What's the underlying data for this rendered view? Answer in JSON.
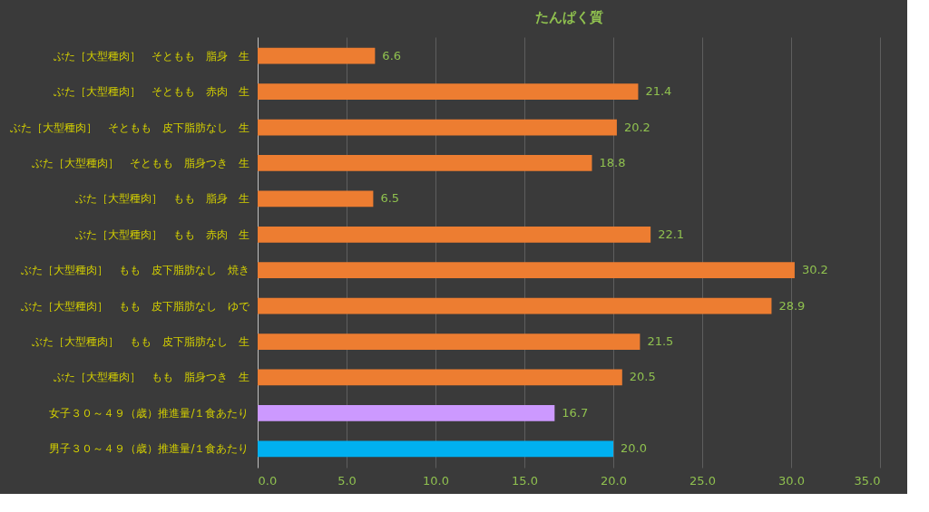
{
  "chart_data": {
    "type": "bar",
    "orientation": "horizontal",
    "title": "たんぱく質",
    "categories": [
      "ぶた［大型種肉］　そともも　脂身　生",
      "ぶた［大型種肉］　そともも　赤肉　生",
      "ぶた［大型種肉］　そともも　皮下脂肪なし　生",
      "ぶた［大型種肉］　そともも　脂身つき　生",
      "ぶた［大型種肉］　もも　脂身　生",
      "ぶた［大型種肉］　もも　赤肉　生",
      "ぶた［大型種肉］　もも　皮下脂肪なし　焼き",
      "ぶた［大型種肉］　もも　皮下脂肪なし　ゆで",
      "ぶた［大型種肉］　もも　皮下脂肪なし　生",
      "ぶた［大型種肉］　もも　脂身つき　生",
      "女子３０～４９（歳）推進量/１食あたり",
      "男子３０～４９（歳）推進量/１食あたり"
    ],
    "values": [
      6.6,
      21.4,
      20.2,
      18.8,
      6.5,
      22.1,
      30.2,
      28.9,
      21.5,
      20.5,
      16.7,
      20.0
    ],
    "value_labels": [
      "6.6",
      "21.4",
      "20.2",
      "18.8",
      "6.5",
      "22.1",
      "30.2",
      "28.9",
      "21.5",
      "20.5",
      "16.7",
      "20.0"
    ],
    "colors": [
      "#ed7d31",
      "#ed7d31",
      "#ed7d31",
      "#ed7d31",
      "#ed7d31",
      "#ed7d31",
      "#ed7d31",
      "#ed7d31",
      "#ed7d31",
      "#ed7d31",
      "#cc99ff",
      "#00b0f0"
    ],
    "xlim": [
      0,
      35
    ],
    "xticks": [
      {
        "value": 0,
        "label": "0.0"
      },
      {
        "value": 5,
        "label": "5.0"
      },
      {
        "value": 10,
        "label": "10.0"
      },
      {
        "value": 15,
        "label": "15.0"
      },
      {
        "value": 20,
        "label": "20.0"
      },
      {
        "value": 25,
        "label": "25.0"
      },
      {
        "value": 30,
        "label": "30.0"
      },
      {
        "value": 35,
        "label": "35.0"
      }
    ],
    "grid": "x"
  }
}
